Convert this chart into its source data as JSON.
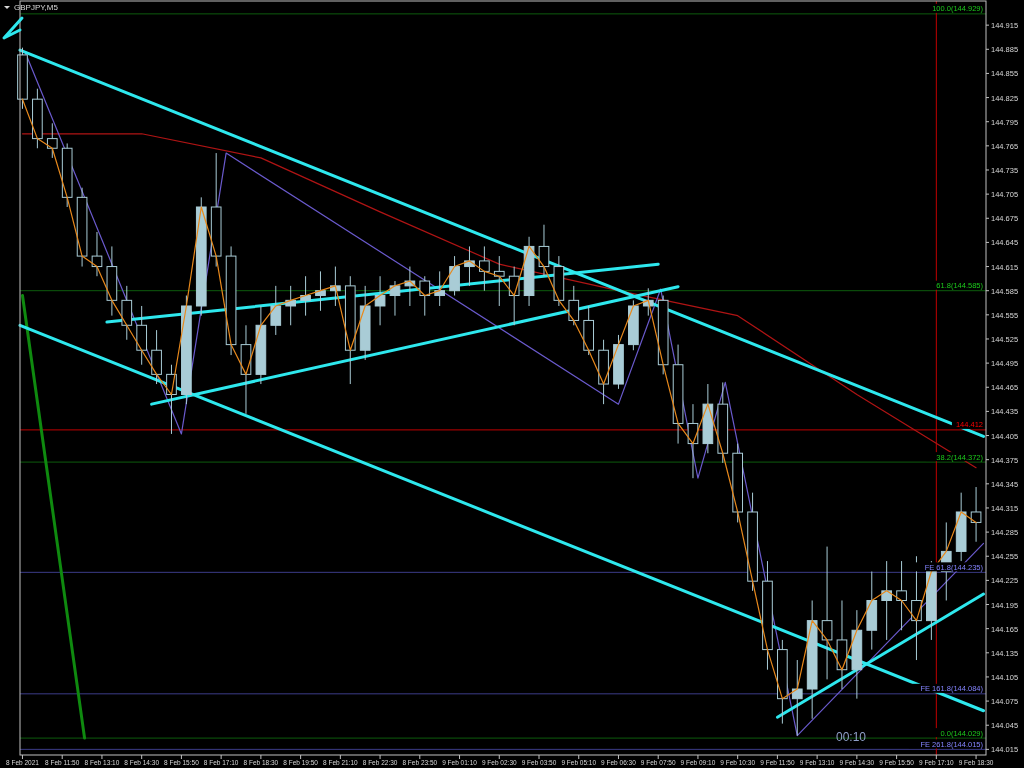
{
  "chart_data": {
    "type": "candlestick",
    "title": "GBPJPY,M5",
    "color": "#a9ccd6",
    "x": [
      "2021-02-08T10:30",
      "2021-02-08T11:00",
      "2021-02-08T11:30",
      "2021-02-08T12:00",
      "2021-02-08T12:30",
      "2021-02-08T13:00",
      "2021-02-08T13:30",
      "2021-02-08T14:00",
      "2021-02-08T14:30",
      "2021-02-08T15:00",
      "2021-02-08T15:30",
      "2021-02-08T16:00",
      "2021-02-08T16:30",
      "2021-02-08T17:00",
      "2021-02-08T17:30",
      "2021-02-08T18:00",
      "2021-02-08T18:30",
      "2021-02-08T19:00",
      "2021-02-08T19:30",
      "2021-02-08T20:00",
      "2021-02-08T20:30",
      "2021-02-08T21:00",
      "2021-02-08T21:30",
      "2021-02-08T22:00",
      "2021-02-08T22:30",
      "2021-02-08T23:00",
      "2021-02-08T23:30",
      "2021-02-09T00:00",
      "2021-02-09T00:30",
      "2021-02-09T01:00",
      "2021-02-09T01:30",
      "2021-02-09T02:00",
      "2021-02-09T02:30",
      "2021-02-09T03:00",
      "2021-02-09T03:30",
      "2021-02-09T04:00",
      "2021-02-09T04:30",
      "2021-02-09T05:00",
      "2021-02-09T05:30",
      "2021-02-09T06:00",
      "2021-02-09T06:30",
      "2021-02-09T07:00",
      "2021-02-09T07:30",
      "2021-02-09T08:00",
      "2021-02-09T08:30",
      "2021-02-09T09:00",
      "2021-02-09T09:30",
      "2021-02-09T10:00",
      "2021-02-09T10:30",
      "2021-02-09T11:00",
      "2021-02-09T11:30",
      "2021-02-09T12:00",
      "2021-02-09T12:30",
      "2021-02-09T13:00",
      "2021-02-09T13:30",
      "2021-02-09T14:00",
      "2021-02-09T14:30",
      "2021-02-09T15:00",
      "2021-02-09T15:30",
      "2021-02-09T16:00",
      "2021-02-09T16:30",
      "2021-02-09T17:00",
      "2021-02-09T17:30",
      "2021-02-09T18:00",
      "2021-02-09T18:30"
    ],
    "ohlc": [
      [
        144.878,
        144.887,
        144.811,
        144.823
      ],
      [
        144.823,
        144.836,
        144.762,
        144.774
      ],
      [
        144.774,
        144.793,
        144.75,
        144.762
      ],
      [
        144.762,
        144.768,
        144.689,
        144.701
      ],
      [
        144.701,
        144.713,
        144.615,
        144.628
      ],
      [
        144.628,
        144.658,
        144.603,
        144.615
      ],
      [
        144.615,
        144.64,
        144.554,
        144.573
      ],
      [
        144.573,
        144.591,
        144.524,
        144.542
      ],
      [
        144.542,
        144.566,
        144.493,
        144.511
      ],
      [
        144.511,
        144.536,
        144.469,
        144.481
      ],
      [
        144.481,
        144.493,
        144.407,
        144.456
      ],
      [
        144.456,
        144.579,
        144.444,
        144.566
      ],
      [
        144.566,
        144.701,
        144.554,
        144.689
      ],
      [
        144.689,
        144.756,
        144.615,
        144.628
      ],
      [
        144.628,
        144.64,
        144.505,
        144.518
      ],
      [
        144.518,
        144.542,
        144.432,
        144.481
      ],
      [
        144.481,
        144.566,
        144.469,
        144.542
      ],
      [
        144.542,
        144.591,
        144.53,
        144.566
      ],
      [
        144.566,
        144.591,
        144.542,
        144.573
      ],
      [
        144.573,
        144.603,
        144.554,
        144.579
      ],
      [
        144.579,
        144.609,
        144.56,
        144.585
      ],
      [
        144.585,
        144.615,
        144.566,
        144.591
      ],
      [
        144.591,
        144.603,
        144.469,
        144.511
      ],
      [
        144.511,
        144.591,
        144.499,
        144.566
      ],
      [
        144.566,
        144.603,
        144.542,
        144.579
      ],
      [
        144.579,
        144.597,
        144.554,
        144.591
      ],
      [
        144.591,
        144.615,
        144.566,
        144.597
      ],
      [
        144.597,
        144.603,
        144.554,
        144.579
      ],
      [
        144.579,
        144.609,
        144.566,
        144.585
      ],
      [
        144.585,
        144.628,
        144.579,
        144.615
      ],
      [
        144.615,
        144.64,
        144.591,
        144.622
      ],
      [
        144.622,
        144.64,
        144.585,
        144.609
      ],
      [
        144.609,
        144.628,
        144.566,
        144.603
      ],
      [
        144.603,
        144.615,
        144.542,
        144.579
      ],
      [
        144.579,
        144.652,
        144.566,
        144.64
      ],
      [
        144.64,
        144.667,
        144.603,
        144.615
      ],
      [
        144.615,
        144.628,
        144.566,
        144.573
      ],
      [
        144.573,
        144.591,
        144.542,
        144.548
      ],
      [
        144.548,
        144.566,
        144.505,
        144.511
      ],
      [
        144.511,
        144.524,
        144.444,
        144.469
      ],
      [
        144.469,
        144.53,
        144.463,
        144.518
      ],
      [
        144.518,
        144.573,
        144.511,
        144.566
      ],
      [
        144.566,
        144.588,
        144.554,
        144.573
      ],
      [
        144.573,
        144.579,
        144.481,
        144.493
      ],
      [
        144.493,
        144.518,
        144.395,
        144.42
      ],
      [
        144.42,
        144.444,
        144.352,
        144.395
      ],
      [
        144.395,
        144.469,
        144.383,
        144.444
      ],
      [
        144.444,
        144.471,
        144.371,
        144.383
      ],
      [
        144.383,
        144.395,
        144.297,
        144.31
      ],
      [
        144.31,
        144.334,
        144.212,
        144.224
      ],
      [
        144.224,
        144.249,
        144.114,
        144.139
      ],
      [
        144.139,
        144.151,
        144.047,
        144.078
      ],
      [
        144.078,
        144.126,
        144.032,
        144.09
      ],
      [
        144.09,
        144.2,
        144.053,
        144.175
      ],
      [
        144.175,
        144.267,
        144.102,
        144.151
      ],
      [
        144.151,
        144.2,
        144.09,
        144.114
      ],
      [
        144.114,
        144.188,
        144.078,
        144.163
      ],
      [
        144.163,
        144.236,
        144.139,
        144.2
      ],
      [
        144.2,
        144.249,
        144.151,
        144.212
      ],
      [
        144.212,
        144.249,
        144.163,
        144.2
      ],
      [
        144.2,
        144.255,
        144.126,
        144.175
      ],
      [
        144.175,
        144.249,
        144.151,
        144.236
      ],
      [
        144.236,
        144.297,
        144.2,
        144.261
      ],
      [
        144.261,
        144.334,
        144.249,
        144.31
      ],
      [
        144.31,
        144.341,
        144.273,
        144.297
      ]
    ],
    "series": [
      {
        "type": "line",
        "color": "#e8891c",
        "values": [
          144.823,
          144.774,
          144.762,
          144.701,
          144.628,
          144.615,
          144.573,
          144.542,
          144.511,
          144.481,
          144.456,
          144.566,
          144.689,
          144.628,
          144.518,
          144.481,
          144.542,
          144.566,
          144.573,
          144.579,
          144.585,
          144.591,
          144.511,
          144.566,
          144.579,
          144.591,
          144.597,
          144.579,
          144.585,
          144.615,
          144.622,
          144.609,
          144.603,
          144.579,
          144.64,
          144.615,
          144.573,
          144.548,
          144.511,
          144.469,
          144.518,
          144.566,
          144.573,
          144.493,
          144.42,
          144.395,
          144.444,
          144.383,
          144.31,
          144.224,
          144.139,
          144.078,
          144.09,
          144.175,
          144.151,
          144.114,
          144.163,
          144.2,
          144.212,
          144.2,
          144.175,
          144.236,
          144.261,
          144.31,
          144.297
        ]
      },
      {
        "type": "line",
        "color": "#b01414",
        "x": [
          "2021-02-08T10:30",
          "2021-02-08T14:30",
          "2021-02-08T18:30",
          "2021-02-08T22:30",
          "2021-02-09T02:30",
          "2021-02-09T06:30",
          "2021-02-09T10:30",
          "2021-02-09T14:30",
          "2021-02-09T18:30"
        ],
        "values": [
          144.78,
          144.78,
          144.75,
          144.683,
          144.618,
          144.585,
          144.554,
          144.456,
          144.365
        ]
      },
      {
        "type": "line",
        "color": "#6a5acd",
        "x": [
          "2021-02-08T10:35",
          "2021-02-08T15:50",
          "2021-02-08T17:20",
          "2021-02-09T06:30",
          "2021-02-09T07:55",
          "2021-02-09T09:10",
          "2021-02-09T10:05",
          "2021-02-09T12:30",
          "2021-02-09T18:45"
        ],
        "values": [
          144.882,
          144.407,
          144.756,
          144.444,
          144.587,
          144.352,
          144.471,
          144.032,
          144.271
        ]
      },
      {
        "type": "line",
        "color": "#0f8a0f",
        "x": [
          "2021-02-08T10:30",
          "2021-02-08T12:35"
        ],
        "values": [
          144.579,
          144.029
        ]
      },
      {
        "type": "line",
        "color": "#2ee8ee",
        "x": [
          "2021-02-08T10:25",
          "2021-02-09T18:45"
        ],
        "values": [
          144.884,
          144.404
        ]
      },
      {
        "type": "line",
        "color": "#2ee8ee",
        "x": [
          "2021-02-08T10:25",
          "2021-02-09T18:45"
        ],
        "values": [
          144.542,
          144.063
        ]
      },
      {
        "type": "line",
        "color": "#2ee8ee",
        "x": [
          "2021-02-08T13:20",
          "2021-02-09T07:50"
        ],
        "values": [
          144.546,
          144.618
        ]
      },
      {
        "type": "line",
        "color": "#2ee8ee",
        "x": [
          "2021-02-08T14:50",
          "2021-02-09T08:30"
        ],
        "values": [
          144.444,
          144.59
        ]
      },
      {
        "type": "line",
        "color": "#2ee8ee",
        "x": [
          "2021-02-09T11:50",
          "2021-02-09T18:45"
        ],
        "values": [
          144.055,
          144.208
        ]
      }
    ],
    "xlim": [
      "2021-02-08T10:25",
      "2021-02-09T18:50"
    ],
    "xticks": [
      {
        "value": "2021-02-08T10:30",
        "label": "8 Feb 2021"
      },
      {
        "value": "2021-02-08T11:50",
        "label": "8 Feb 11:50"
      },
      {
        "value": "2021-02-08T13:10",
        "label": "8 Feb 13:10"
      },
      {
        "value": "2021-02-08T14:30",
        "label": "8 Feb 14:30"
      },
      {
        "value": "2021-02-08T15:50",
        "label": "8 Feb 15:50"
      },
      {
        "value": "2021-02-08T17:10",
        "label": "8 Feb 17:10"
      },
      {
        "value": "2021-02-08T18:30",
        "label": "8 Feb 18:30"
      },
      {
        "value": "2021-02-08T19:50",
        "label": "8 Feb 19:50"
      },
      {
        "value": "2021-02-08T21:10",
        "label": "8 Feb 21:10"
      },
      {
        "value": "2021-02-08T22:30",
        "label": "8 Feb 22:30"
      },
      {
        "value": "2021-02-08T23:50",
        "label": "8 Feb 23:50"
      },
      {
        "value": "2021-02-09T01:10",
        "label": "9 Feb 01:10"
      },
      {
        "value": "2021-02-09T02:30",
        "label": "9 Feb 02:30"
      },
      {
        "value": "2021-02-09T03:50",
        "label": "9 Feb 03:50"
      },
      {
        "value": "2021-02-09T05:10",
        "label": "9 Feb 05:10"
      },
      {
        "value": "2021-02-09T06:30",
        "label": "9 Feb 06:30"
      },
      {
        "value": "2021-02-09T07:50",
        "label": "9 Feb 07:50"
      },
      {
        "value": "2021-02-09T09:10",
        "label": "9 Feb 09:10"
      },
      {
        "value": "2021-02-09T10:30",
        "label": "9 Feb 10:30"
      },
      {
        "value": "2021-02-09T11:50",
        "label": "9 Feb 11:50"
      },
      {
        "value": "2021-02-09T13:10",
        "label": "9 Feb 13:10"
      },
      {
        "value": "2021-02-09T14:30",
        "label": "9 Feb 14:30"
      },
      {
        "value": "2021-02-09T15:50",
        "label": "9 Feb 15:50"
      },
      {
        "value": "2021-02-09T17:10",
        "label": "9 Feb 17:10"
      },
      {
        "value": "2021-02-09T18:30",
        "label": "9 Feb 18:30"
      }
    ],
    "ylim": [
      144.008,
      144.945
    ],
    "yticks": [
      144.015,
      144.045,
      144.075,
      144.105,
      144.135,
      144.165,
      144.195,
      144.225,
      144.255,
      144.285,
      144.315,
      144.345,
      144.375,
      144.405,
      144.435,
      144.465,
      144.495,
      144.525,
      144.555,
      144.585,
      144.615,
      144.645,
      144.675,
      144.705,
      144.735,
      144.765,
      144.795,
      144.825,
      144.855,
      144.885,
      144.915
    ],
    "ref_lines": [
      {
        "axis": "y",
        "value": 144.929,
        "label": "100.0(144.929)",
        "color": "#0d5c0d"
      },
      {
        "axis": "y",
        "value": 144.585,
        "label": "61.8(144.585)",
        "color": "#0d5c0d"
      },
      {
        "axis": "y",
        "value": 144.372,
        "label": "38.2(144.372)",
        "color": "#0d5c0d"
      },
      {
        "axis": "y",
        "value": 144.029,
        "label": "0.0(144.029)",
        "color": "#0d5c0d"
      },
      {
        "axis": "y",
        "value": 144.235,
        "label": "FE 61.8(144.235)",
        "color": "#3c3c88"
      },
      {
        "axis": "y",
        "value": 144.084,
        "label": "FE 161.8(144.084)",
        "color": "#3c3c88"
      },
      {
        "axis": "y",
        "value": 144.015,
        "label": "FE 261.8(144.015)",
        "color": "#3c3c88"
      },
      {
        "axis": "y",
        "value": 144.412,
        "label": "144.412",
        "color": "#c00000"
      },
      {
        "axis": "x",
        "value": "2021-02-09T17:10",
        "color": "#c00000"
      }
    ],
    "annotations": [
      "00:10"
    ],
    "grid": false
  }
}
